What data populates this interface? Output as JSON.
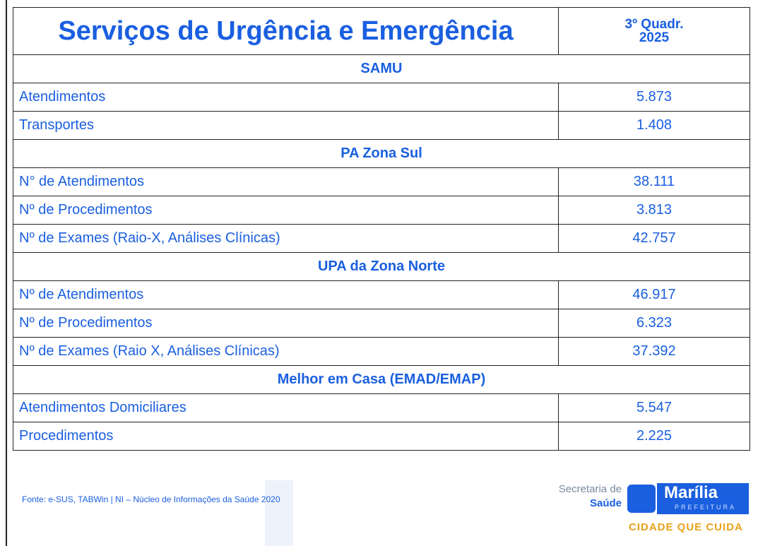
{
  "header": {
    "title": "Serviços de Urgência e Emergência",
    "period": [
      "3º Quadr.",
      "2025"
    ]
  },
  "sections": [
    {
      "name": "SAMU",
      "rows": [
        [
          "Atendimentos",
          "5.873"
        ],
        [
          "Transportes",
          "1.408"
        ]
      ]
    },
    {
      "name": "PA Zona Sul",
      "rows": [
        [
          "N° de Atendimentos",
          "38.111"
        ],
        [
          "Nº de Procedimentos",
          "3.813"
        ],
        [
          "Nº de Exames (Raio-X, Análises Clínicas)",
          "42.757"
        ]
      ]
    },
    {
      "name": "UPA da Zona Norte",
      "rows": [
        [
          "Nº de Atendimentos",
          "46.917"
        ],
        [
          "Nº de Procedimentos",
          "6.323"
        ],
        [
          "Nº de Exames (Raio X, Análises Clínicas)",
          "37.392"
        ]
      ]
    },
    {
      "name": "Melhor em Casa (EMAD/EMAP)",
      "rows": [
        [
          "Atendimentos Domiciliares",
          "5.547"
        ],
        [
          "Procedimentos",
          "2.225"
        ]
      ]
    }
  ],
  "footer": {
    "source": "Fonte: e-SUS, TABWin | NI – Núcleo de Informações da Saúde 2020",
    "logo": {
      "line1": "Secretaria de",
      "line2": "Saúde",
      "city": "Marília",
      "sub": "PREFEITURA",
      "slogan": "CIDADE QUE CUIDA"
    }
  }
}
